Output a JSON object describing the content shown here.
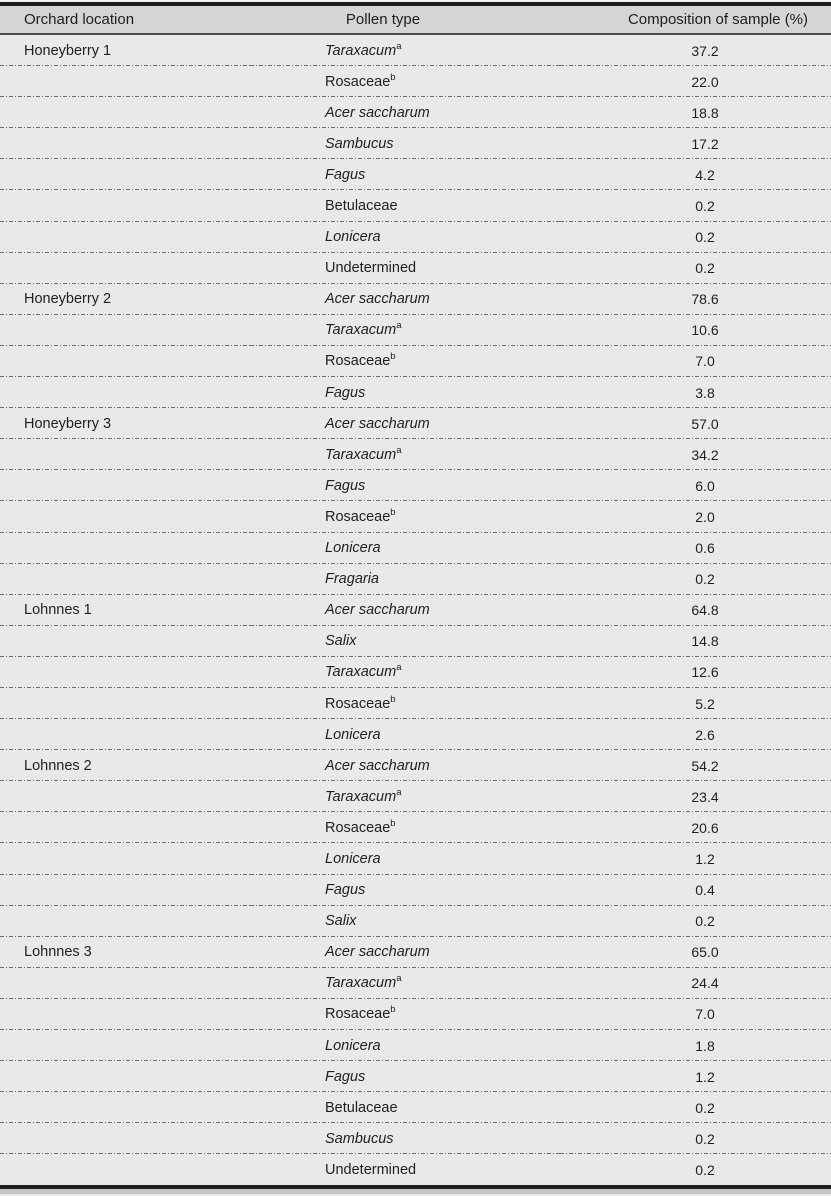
{
  "colors": {
    "header_bg": "#d5d5d5",
    "body_bg": "#e9e9e9",
    "top_border": "#1b1b1b",
    "bottom_border": "#1f1f1f",
    "separator_line": "#6e6e6e",
    "text": "#1f1f1f"
  },
  "table": {
    "columns": [
      {
        "label": "Orchard location"
      },
      {
        "label": "Pollen type"
      },
      {
        "label": "Composition of sample (%)"
      }
    ],
    "rows": [
      {
        "location": "Honeyberry 1",
        "pollen": "Taraxacum",
        "sup": "a",
        "italic": true,
        "value": "37.2"
      },
      {
        "location": "",
        "pollen": "Rosaceae",
        "sup": "b",
        "italic": false,
        "value": "22.0"
      },
      {
        "location": "",
        "pollen": "Acer saccharum",
        "sup": "",
        "italic": true,
        "value": "18.8"
      },
      {
        "location": "",
        "pollen": "Sambucus",
        "sup": "",
        "italic": true,
        "value": "17.2"
      },
      {
        "location": "",
        "pollen": "Fagus",
        "sup": "",
        "italic": true,
        "value": "4.2"
      },
      {
        "location": "",
        "pollen": "Betulaceae",
        "sup": "",
        "italic": false,
        "value": "0.2"
      },
      {
        "location": "",
        "pollen": "Lonicera",
        "sup": "",
        "italic": true,
        "value": "0.2"
      },
      {
        "location": "",
        "pollen": "Undetermined",
        "sup": "",
        "italic": false,
        "value": "0.2"
      },
      {
        "location": "Honeyberry 2",
        "pollen": "Acer saccharum",
        "sup": "",
        "italic": true,
        "value": "78.6"
      },
      {
        "location": "",
        "pollen": "Taraxacum",
        "sup": "a",
        "italic": true,
        "value": "10.6"
      },
      {
        "location": "",
        "pollen": "Rosaceae",
        "sup": "b",
        "italic": false,
        "value": "7.0"
      },
      {
        "location": "",
        "pollen": "Fagus",
        "sup": "",
        "italic": true,
        "value": "3.8"
      },
      {
        "location": "Honeyberry 3",
        "pollen": "Acer saccharum",
        "sup": "",
        "italic": true,
        "value": "57.0"
      },
      {
        "location": "",
        "pollen": "Taraxacum",
        "sup": "a",
        "italic": true,
        "value": "34.2"
      },
      {
        "location": "",
        "pollen": "Fagus",
        "sup": "",
        "italic": true,
        "value": "6.0"
      },
      {
        "location": "",
        "pollen": "Rosaceae",
        "sup": "b",
        "italic": false,
        "value": "2.0"
      },
      {
        "location": "",
        "pollen": "Lonicera",
        "sup": "",
        "italic": true,
        "value": "0.6"
      },
      {
        "location": "",
        "pollen": "Fragaria",
        "sup": "",
        "italic": true,
        "value": "0.2"
      },
      {
        "location": "Lohnnes 1",
        "pollen": "Acer saccharum",
        "sup": "",
        "italic": true,
        "value": "64.8"
      },
      {
        "location": "",
        "pollen": "Salix",
        "sup": "",
        "italic": true,
        "value": "14.8"
      },
      {
        "location": "",
        "pollen": "Taraxacum",
        "sup": "a",
        "italic": true,
        "value": "12.6"
      },
      {
        "location": "",
        "pollen": "Rosaceae",
        "sup": "b",
        "italic": false,
        "value": "5.2"
      },
      {
        "location": "",
        "pollen": "Lonicera",
        "sup": "",
        "italic": true,
        "value": "2.6"
      },
      {
        "location": "Lohnnes 2",
        "pollen": "Acer saccharum",
        "sup": "",
        "italic": true,
        "value": "54.2"
      },
      {
        "location": "",
        "pollen": "Taraxacum",
        "sup": "a",
        "italic": true,
        "value": "23.4"
      },
      {
        "location": "",
        "pollen": "Rosaceae",
        "sup": "b",
        "italic": false,
        "value": "20.6"
      },
      {
        "location": "",
        "pollen": "Lonicera",
        "sup": "",
        "italic": true,
        "value": "1.2"
      },
      {
        "location": "",
        "pollen": "Fagus",
        "sup": "",
        "italic": true,
        "value": "0.4"
      },
      {
        "location": "",
        "pollen": "Salix",
        "sup": "",
        "italic": true,
        "value": "0.2"
      },
      {
        "location": "Lohnnes 3",
        "pollen": "Acer saccharum",
        "sup": "",
        "italic": true,
        "value": "65.0"
      },
      {
        "location": "",
        "pollen": "Taraxacum",
        "sup": "a",
        "italic": true,
        "value": "24.4"
      },
      {
        "location": "",
        "pollen": "Rosaceae",
        "sup": "b",
        "italic": false,
        "value": "7.0"
      },
      {
        "location": "",
        "pollen": "Lonicera",
        "sup": "",
        "italic": true,
        "value": "1.8"
      },
      {
        "location": "",
        "pollen": "Fagus",
        "sup": "",
        "italic": true,
        "value": "1.2"
      },
      {
        "location": "",
        "pollen": "Betulaceae",
        "sup": "",
        "italic": false,
        "value": "0.2"
      },
      {
        "location": "",
        "pollen": "Sambucus",
        "sup": "",
        "italic": true,
        "value": "0.2"
      },
      {
        "location": "",
        "pollen": "Undetermined",
        "sup": "",
        "italic": false,
        "value": "0.2"
      }
    ]
  }
}
